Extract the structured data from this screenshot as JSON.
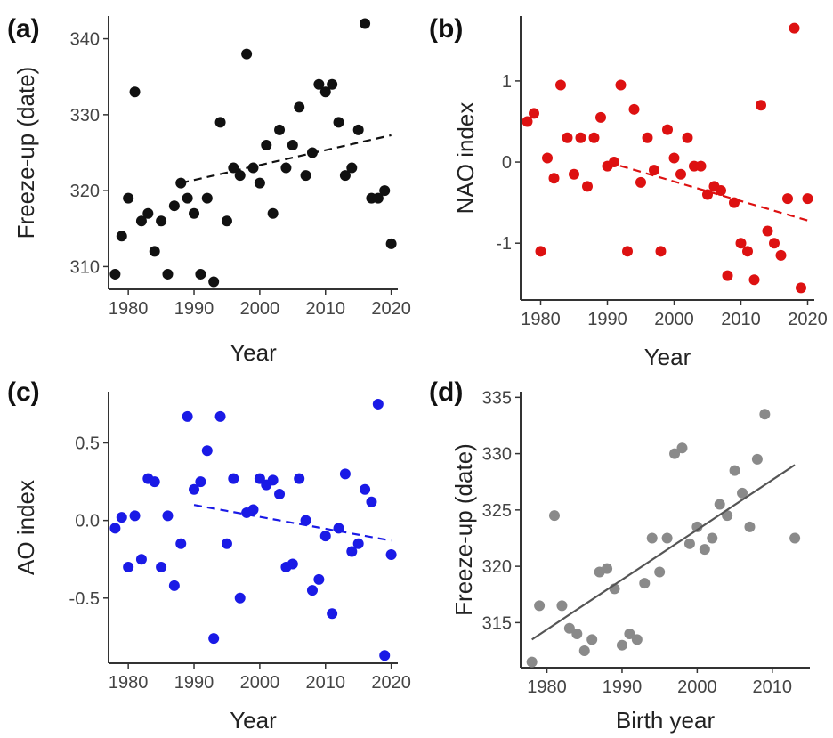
{
  "chart_data": [
    {
      "panel_label": "(a)",
      "type": "scatter",
      "xlabel": "Year",
      "ylabel": "Freeze-up (date)",
      "xlim": [
        1977,
        2021
      ],
      "ylim": [
        307,
        343
      ],
      "xticks": [
        1980,
        1990,
        2000,
        2010,
        2020
      ],
      "yticks": [
        310,
        320,
        330,
        340
      ],
      "point_color": "#111111",
      "points": [
        [
          1978,
          309
        ],
        [
          1979,
          314
        ],
        [
          1980,
          319
        ],
        [
          1981,
          333
        ],
        [
          1982,
          316
        ],
        [
          1983,
          317
        ],
        [
          1984,
          312
        ],
        [
          1985,
          316
        ],
        [
          1986,
          309
        ],
        [
          1987,
          318
        ],
        [
          1988,
          321
        ],
        [
          1989,
          319
        ],
        [
          1990,
          317
        ],
        [
          1991,
          309
        ],
        [
          1992,
          319
        ],
        [
          1993,
          308
        ],
        [
          1994,
          329
        ],
        [
          1995,
          316
        ],
        [
          1996,
          323
        ],
        [
          1997,
          322
        ],
        [
          1998,
          338
        ],
        [
          1999,
          323
        ],
        [
          2000,
          321
        ],
        [
          2001,
          326
        ],
        [
          2002,
          317
        ],
        [
          2003,
          328
        ],
        [
          2004,
          323
        ],
        [
          2005,
          326
        ],
        [
          2006,
          331
        ],
        [
          2007,
          322
        ],
        [
          2008,
          325
        ],
        [
          2009,
          334
        ],
        [
          2010,
          333
        ],
        [
          2011,
          334
        ],
        [
          2012,
          329
        ],
        [
          2013,
          322
        ],
        [
          2014,
          323
        ],
        [
          2015,
          328
        ],
        [
          2016,
          342
        ],
        [
          2017,
          319
        ],
        [
          2018,
          319
        ],
        [
          2019,
          320
        ],
        [
          2020,
          313
        ]
      ],
      "trend": {
        "style": "dashed",
        "color": "#111111",
        "x": [
          1988,
          2020
        ],
        "y": [
          321,
          327.3
        ]
      }
    },
    {
      "panel_label": "(b)",
      "type": "scatter",
      "xlabel": "Year",
      "ylabel": "NAO index",
      "xlim": [
        1977,
        2021
      ],
      "ylim": [
        -1.7,
        1.8
      ],
      "xticks": [
        1980,
        1990,
        2000,
        2010,
        2020
      ],
      "yticks": [
        -1,
        0,
        1
      ],
      "point_color": "#dd1111",
      "points": [
        [
          1978,
          0.5
        ],
        [
          1979,
          0.6
        ],
        [
          1980,
          -1.1
        ],
        [
          1981,
          0.05
        ],
        [
          1982,
          -0.2
        ],
        [
          1983,
          0.95
        ],
        [
          1984,
          0.3
        ],
        [
          1985,
          -0.15
        ],
        [
          1986,
          0.3
        ],
        [
          1987,
          -0.3
        ],
        [
          1988,
          0.3
        ],
        [
          1989,
          0.55
        ],
        [
          1990,
          -0.05
        ],
        [
          1991,
          0.0
        ],
        [
          1992,
          0.95
        ],
        [
          1993,
          -1.1
        ],
        [
          1994,
          0.65
        ],
        [
          1995,
          -0.25
        ],
        [
          1996,
          0.3
        ],
        [
          1997,
          -0.1
        ],
        [
          1998,
          -1.1
        ],
        [
          1999,
          0.4
        ],
        [
          2000,
          0.05
        ],
        [
          2001,
          -0.15
        ],
        [
          2002,
          0.3
        ],
        [
          2003,
          -0.05
        ],
        [
          2004,
          -0.05
        ],
        [
          2005,
          -0.4
        ],
        [
          2006,
          -0.3
        ],
        [
          2007,
          -0.35
        ],
        [
          2008,
          -1.4
        ],
        [
          2009,
          -0.5
        ],
        [
          2010,
          -1.0
        ],
        [
          2011,
          -1.1
        ],
        [
          2012,
          -1.45
        ],
        [
          2013,
          0.7
        ],
        [
          2014,
          -0.85
        ],
        [
          2015,
          -1.0
        ],
        [
          2016,
          -1.15
        ],
        [
          2017,
          -0.45
        ],
        [
          2018,
          1.65
        ],
        [
          2019,
          -1.55
        ],
        [
          2020,
          -0.45
        ]
      ],
      "trend": {
        "style": "dashed",
        "color": "#dd1111",
        "x": [
          1990,
          2020
        ],
        "y": [
          0.0,
          -0.72
        ]
      }
    },
    {
      "panel_label": "(c)",
      "type": "scatter",
      "xlabel": "Year",
      "ylabel": "AO index",
      "xlim": [
        1977,
        2021
      ],
      "ylim": [
        -0.92,
        0.83
      ],
      "xticks": [
        1980,
        1990,
        2000,
        2010,
        2020
      ],
      "yticks": [
        -0.5,
        0.0,
        0.5
      ],
      "ytick_labels": [
        "-0.5",
        "0.0",
        "0.5"
      ],
      "point_color": "#1a1ae6",
      "points": [
        [
          1978,
          -0.05
        ],
        [
          1979,
          0.02
        ],
        [
          1980,
          -0.3
        ],
        [
          1981,
          0.03
        ],
        [
          1982,
          -0.25
        ],
        [
          1983,
          0.27
        ],
        [
          1984,
          0.25
        ],
        [
          1985,
          -0.3
        ],
        [
          1986,
          0.03
        ],
        [
          1987,
          -0.42
        ],
        [
          1988,
          -0.15
        ],
        [
          1989,
          0.67
        ],
        [
          1990,
          0.2
        ],
        [
          1991,
          0.25
        ],
        [
          1992,
          0.45
        ],
        [
          1993,
          -0.76
        ],
        [
          1994,
          0.67
        ],
        [
          1995,
          -0.15
        ],
        [
          1996,
          0.27
        ],
        [
          1997,
          -0.5
        ],
        [
          1998,
          0.05
        ],
        [
          1999,
          0.07
        ],
        [
          2000,
          0.27
        ],
        [
          2001,
          0.23
        ],
        [
          2002,
          0.26
        ],
        [
          2003,
          0.17
        ],
        [
          2004,
          -0.3
        ],
        [
          2005,
          -0.28
        ],
        [
          2006,
          0.27
        ],
        [
          2007,
          0.0
        ],
        [
          2008,
          -0.45
        ],
        [
          2009,
          -0.38
        ],
        [
          2010,
          -0.1
        ],
        [
          2011,
          -0.6
        ],
        [
          2012,
          -0.05
        ],
        [
          2013,
          0.3
        ],
        [
          2014,
          -0.2
        ],
        [
          2015,
          -0.15
        ],
        [
          2016,
          0.2
        ],
        [
          2017,
          0.12
        ],
        [
          2018,
          0.75
        ],
        [
          2019,
          -0.87
        ],
        [
          2020,
          -0.22
        ]
      ],
      "trend": {
        "style": "dashed",
        "color": "#1a1ae6",
        "x": [
          1990,
          2020
        ],
        "y": [
          0.1,
          -0.13
        ]
      }
    },
    {
      "panel_label": "(d)",
      "type": "scatter",
      "xlabel": "Birth year",
      "ylabel": "Freeze-up (date)",
      "xlim": [
        1976.5,
        2015
      ],
      "ylim": [
        311,
        335.5
      ],
      "xticks": [
        1980,
        1990,
        2000,
        2010
      ],
      "yticks": [
        315,
        320,
        325,
        330,
        335
      ],
      "point_color": "#8a8a8a",
      "points": [
        [
          1978,
          311.5
        ],
        [
          1979,
          316.5
        ],
        [
          1981,
          324.5
        ],
        [
          1982,
          316.5
        ],
        [
          1983,
          314.5
        ],
        [
          1984,
          314
        ],
        [
          1985,
          312.5
        ],
        [
          1986,
          313.5
        ],
        [
          1987,
          319.5
        ],
        [
          1988,
          319.8
        ],
        [
          1989,
          318
        ],
        [
          1990,
          313
        ],
        [
          1991,
          314
        ],
        [
          1992,
          313.5
        ],
        [
          1993,
          318.5
        ],
        [
          1994,
          322.5
        ],
        [
          1995,
          319.5
        ],
        [
          1996,
          322.5
        ],
        [
          1997,
          330
        ],
        [
          1998,
          330.5
        ],
        [
          1999,
          322
        ],
        [
          2000,
          323.5
        ],
        [
          2001,
          321.5
        ],
        [
          2002,
          322.5
        ],
        [
          2003,
          325.5
        ],
        [
          2004,
          324.5
        ],
        [
          2005,
          328.5
        ],
        [
          2006,
          326.5
        ],
        [
          2007,
          323.5
        ],
        [
          2008,
          329.5
        ],
        [
          2009,
          333.5
        ],
        [
          2013,
          322.5
        ]
      ],
      "trend": {
        "style": "solid",
        "color": "#555555",
        "x": [
          1978,
          2013
        ],
        "y": [
          313.5,
          329
        ]
      }
    }
  ]
}
